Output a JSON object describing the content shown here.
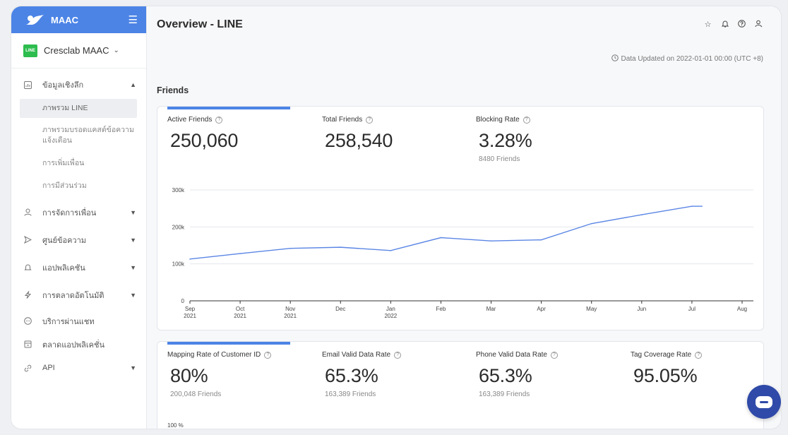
{
  "sidebar": {
    "brand": "MAAC",
    "account": "Cresclab MAAC",
    "line_badge": "LINE",
    "items": [
      {
        "label": "ข้อมูลเชิงลึก",
        "icon": "chart-icon",
        "arrow": "⌃"
      },
      {
        "label": "การจัดการเพื่อน",
        "icon": "user-icon",
        "arrow": "⌄"
      },
      {
        "label": "ศูนย์ข้อความ",
        "icon": "send-icon",
        "arrow": "⌄"
      },
      {
        "label": "แอปพลิเคชัน",
        "icon": "bell-icon",
        "arrow": "⌄"
      },
      {
        "label": "การตลาดอัตโนมัติ",
        "icon": "bolt-icon",
        "arrow": "⌄"
      },
      {
        "label": "บริการผ่านแชท",
        "icon": "chat-icon",
        "arrow": ""
      },
      {
        "label": "ตลาดแอปพลิเคชั่น",
        "icon": "store-icon",
        "arrow": ""
      },
      {
        "label": "API",
        "icon": "link-icon",
        "arrow": "⌄"
      }
    ],
    "subitems": [
      {
        "label": "ภาพรวม LINE"
      },
      {
        "label": "ภาพรวมบรอดแคสต์ข้อความ",
        "label2": "แจ้งเตือน"
      },
      {
        "label": "การเพิ่มเพื่อน"
      },
      {
        "label": "การมีส่วนร่วม"
      }
    ]
  },
  "header": {
    "title": "Overview - LINE",
    "updated": "Data Updated on 2022-01-01 00:00 (UTC +8)"
  },
  "friends": {
    "section_title": "Friends",
    "metrics": [
      {
        "label": "Active Friends",
        "value": "250,060",
        "sub": ""
      },
      {
        "label": "Total Friends",
        "value": "258,540",
        "sub": ""
      },
      {
        "label": "Blocking Rate",
        "value": "3.28%",
        "sub": "8480 Friends"
      }
    ]
  },
  "data_quality": {
    "metrics": [
      {
        "label": "Mapping Rate of Customer ID",
        "value": "80%",
        "sub": "200,048 Friends"
      },
      {
        "label": "Email Valid Data Rate",
        "value": "65.3%",
        "sub": "163,389 Friends"
      },
      {
        "label": "Phone Valid Data Rate",
        "value": "65.3%",
        "sub": "163,389 Friends"
      },
      {
        "label": "Tag Coverage Rate",
        "value": "95.05%",
        "sub": ""
      }
    ],
    "axis_top_label": "100 %"
  },
  "chart_data": {
    "type": "line",
    "title": "",
    "categories": [
      [
        "Sep",
        "2021"
      ],
      [
        "Oct",
        "2021"
      ],
      [
        "Nov",
        "2021"
      ],
      [
        "Dec",
        ""
      ],
      [
        "Jan",
        "2022"
      ],
      [
        "Feb",
        ""
      ],
      [
        "Mar",
        ""
      ],
      [
        "Apr",
        ""
      ],
      [
        "May",
        ""
      ],
      [
        "Jun",
        ""
      ],
      [
        "Jul",
        ""
      ],
      [
        "Aug",
        ""
      ]
    ],
    "series": [
      {
        "name": "Friends",
        "x": [
          0,
          1,
          2,
          3,
          4,
          5,
          6,
          7,
          8,
          9,
          10,
          10.2
        ],
        "values": [
          113000,
          128000,
          142000,
          145000,
          136000,
          171000,
          162000,
          165000,
          209000,
          233000,
          256000,
          256000
        ]
      }
    ],
    "yticks": [
      {
        "v": 0,
        "label": "0"
      },
      {
        "v": 100000,
        "label": "100k"
      },
      {
        "v": 200000,
        "label": "200k"
      },
      {
        "v": 300000,
        "label": "300k"
      }
    ],
    "ylim": [
      0,
      300000
    ],
    "grid": true,
    "color": "#5b86e5"
  },
  "colors": {
    "accent": "#4c84e6",
    "chat": "#2f4aa8",
    "line_green": "#2dbd4e"
  }
}
